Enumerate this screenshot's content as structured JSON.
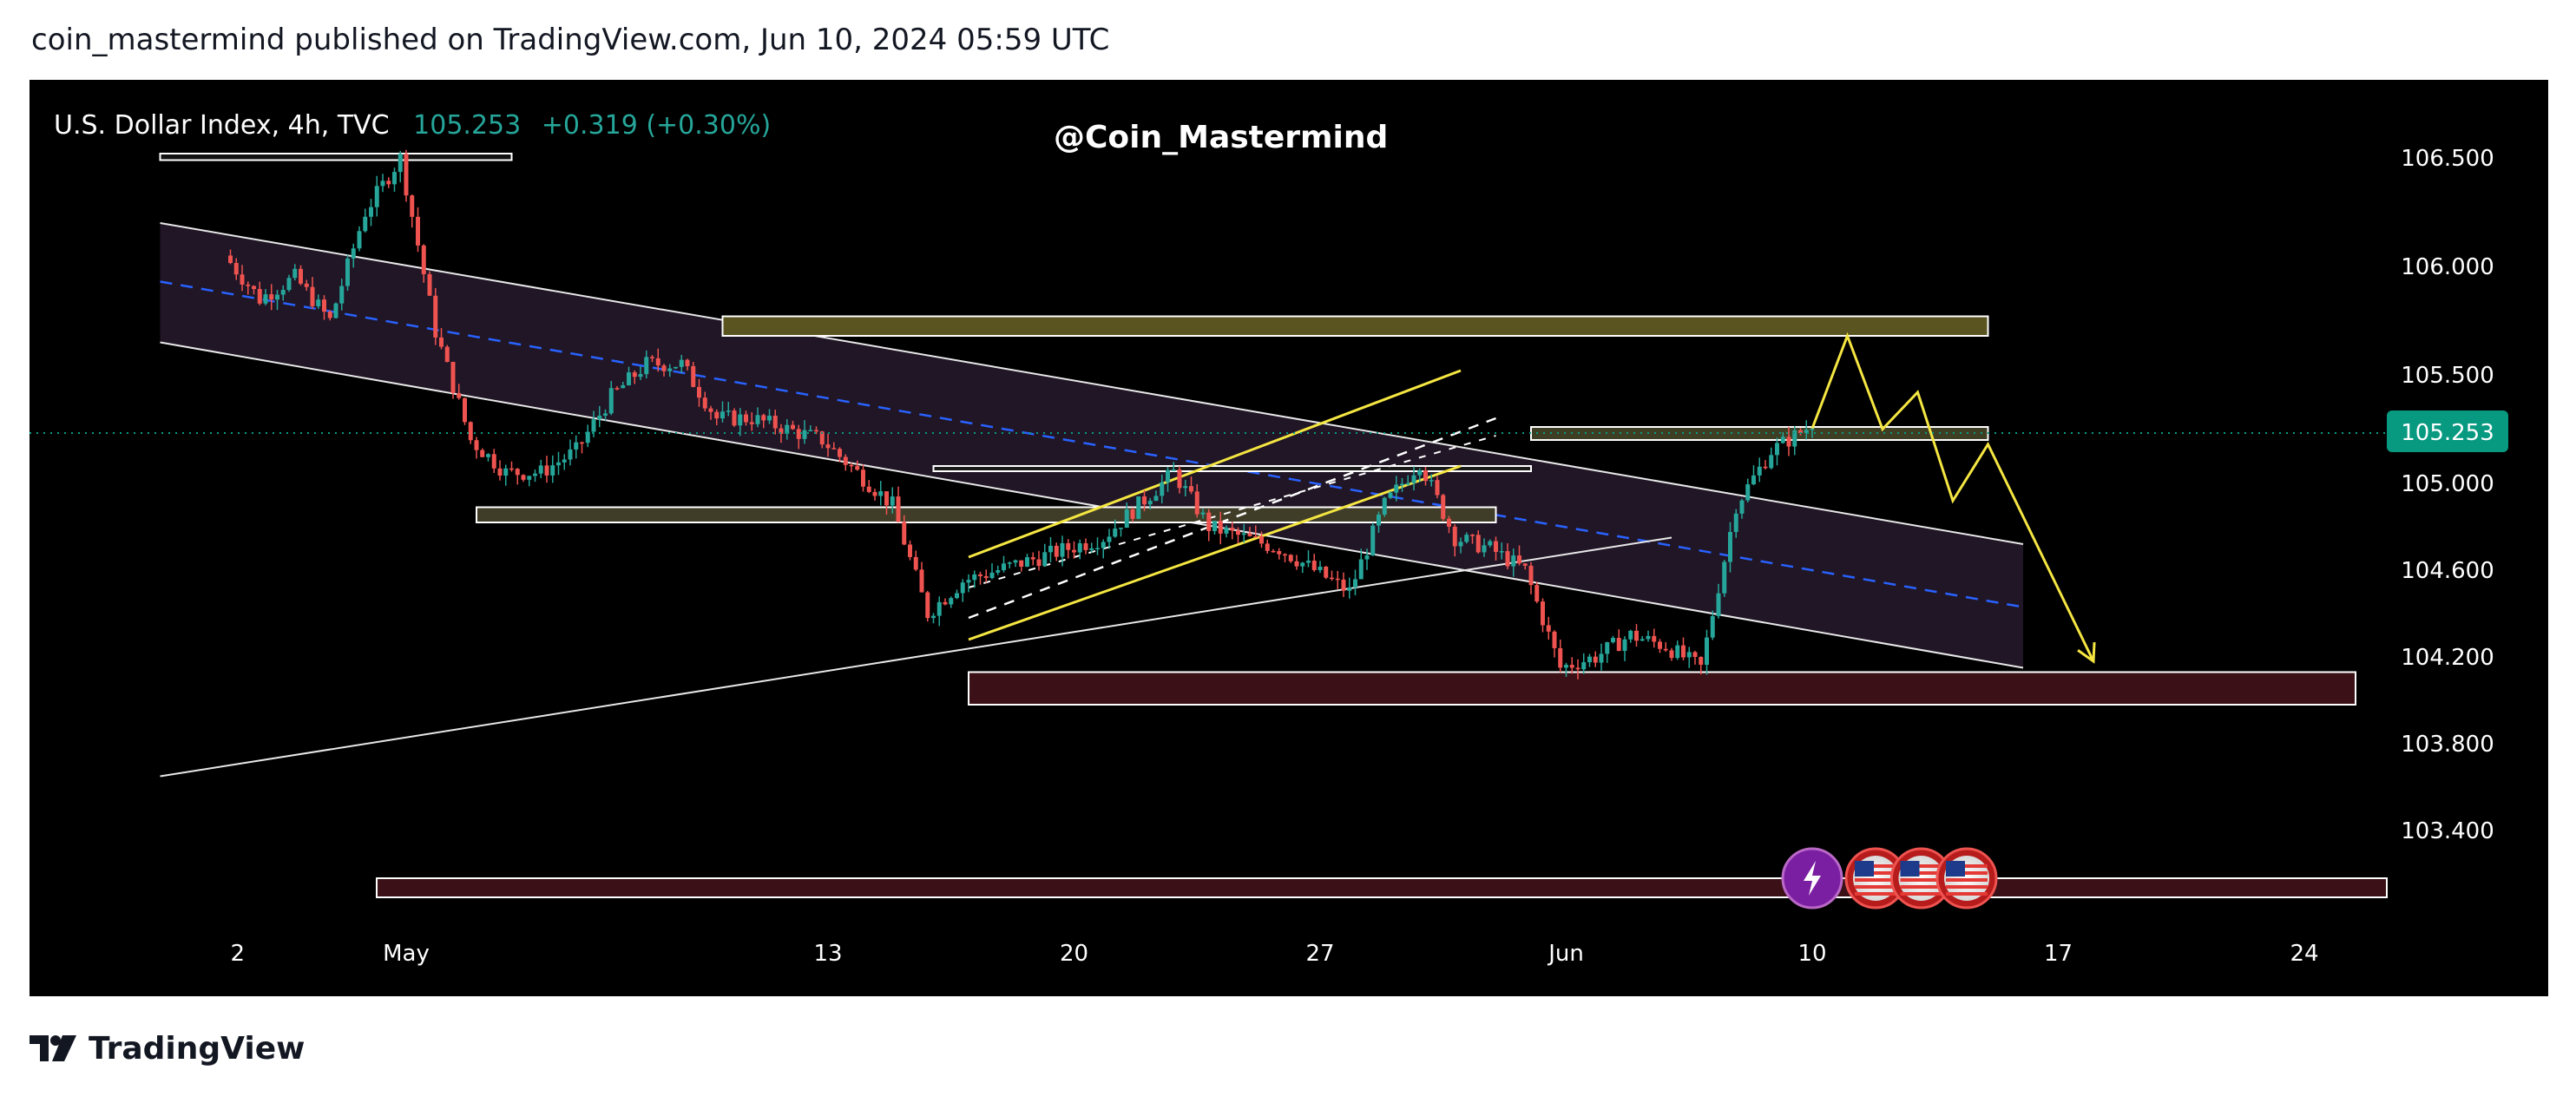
{
  "header": {
    "publish_text": "coin_mastermind published on TradingView.com, Jun 10, 2024 05:59 UTC"
  },
  "legend": {
    "symbol": "U.S. Dollar Index, 4h, TVC",
    "last": "105.253",
    "change": "+0.319 (+0.30%)"
  },
  "watermark": "@Coin_Mastermind",
  "footer": {
    "brand": "TradingView"
  },
  "colors": {
    "up": "#26a69a",
    "down": "#ef5350",
    "price_tag": "#089981",
    "projection": "#f5e642"
  },
  "chart_data": {
    "type": "candlestick",
    "symbol": "U.S. Dollar Index",
    "timeframe": "4h",
    "source": "TVC",
    "last_price": 105.253,
    "change": 0.319,
    "change_pct": 0.3,
    "y_axis": {
      "ticks": [
        "106.500",
        "106.000",
        "105.500",
        "105.000",
        "104.600",
        "104.200",
        "103.800",
        "103.400"
      ],
      "range": [
        103.0,
        106.85
      ]
    },
    "x_axis": {
      "ticks": [
        "2",
        "May",
        "13",
        "20",
        "27",
        "Jun",
        "10",
        "17",
        "24"
      ]
    },
    "price_path": [
      [
        "2024-04-26",
        106.05
      ],
      [
        "2024-04-27",
        105.85
      ],
      [
        "2024-04-28",
        105.95
      ],
      [
        "2024-04-29",
        105.75
      ],
      [
        "2024-04-30",
        106.25
      ],
      [
        "2024-05-01",
        106.5
      ],
      [
        "2024-05-02",
        105.7
      ],
      [
        "2024-05-03",
        105.2
      ],
      [
        "2024-05-04",
        105.05
      ],
      [
        "2024-05-05",
        105.05
      ],
      [
        "2024-05-06",
        105.15
      ],
      [
        "2024-05-07",
        105.4
      ],
      [
        "2024-05-08",
        105.55
      ],
      [
        "2024-05-09",
        105.55
      ],
      [
        "2024-05-10",
        105.3
      ],
      [
        "2024-05-11",
        105.3
      ],
      [
        "2024-05-12",
        105.25
      ],
      [
        "2024-05-13",
        105.2
      ],
      [
        "2024-05-14",
        105.05
      ],
      [
        "2024-05-15",
        104.9
      ],
      [
        "2024-05-16",
        104.4
      ],
      [
        "2024-05-17",
        104.55
      ],
      [
        "2024-05-18",
        104.6
      ],
      [
        "2024-05-19",
        104.65
      ],
      [
        "2024-05-20",
        104.7
      ],
      [
        "2024-05-21",
        104.75
      ],
      [
        "2024-05-22",
        104.9
      ],
      [
        "2024-05-23",
        105.05
      ],
      [
        "2024-05-24",
        104.8
      ],
      [
        "2024-05-25",
        104.75
      ],
      [
        "2024-05-26",
        104.7
      ],
      [
        "2024-05-27",
        104.6
      ],
      [
        "2024-05-28",
        104.5
      ],
      [
        "2024-05-29",
        104.9
      ],
      [
        "2024-05-30",
        105.1
      ],
      [
        "2024-05-31",
        104.75
      ],
      [
        "2024-06-01",
        104.7
      ],
      [
        "2024-06-02",
        104.6
      ],
      [
        "2024-06-03",
        104.15
      ],
      [
        "2024-06-04",
        104.2
      ],
      [
        "2024-06-05",
        104.3
      ],
      [
        "2024-06-06",
        104.25
      ],
      [
        "2024-06-07",
        104.15
      ],
      [
        "2024-06-08",
        104.9
      ],
      [
        "2024-06-09",
        105.15
      ],
      [
        "2024-06-10",
        105.253
      ]
    ],
    "projection_path": [
      [
        "2024-06-10",
        105.253
      ],
      [
        "2024-06-11",
        105.68
      ],
      [
        "2024-06-12",
        105.25
      ],
      [
        "2024-06-13",
        105.42
      ],
      [
        "2024-06-14",
        104.92
      ],
      [
        "2024-06-15",
        105.18
      ],
      [
        "2024-06-18",
        104.18
      ]
    ],
    "zones": [
      {
        "from": "2024-05-10",
        "to": "2024-06-15",
        "low": 105.68,
        "high": 105.77,
        "fill": "#5a5420"
      },
      {
        "from": "2024-06-02",
        "to": "2024-06-15",
        "low": 105.2,
        "high": 105.26,
        "fill": "#3e3e24"
      },
      {
        "from": "2024-05-03",
        "to": "2024-06-01",
        "low": 104.82,
        "high": 104.89,
        "fill": "#3f3d28"
      },
      {
        "from": "2024-05-16",
        "to": "2024-06-02",
        "low": 105.06,
        "high": 105.08,
        "fill": "#1a1a1a"
      },
      {
        "from": "2024-05-17",
        "to": "2024-06-26",
        "low": 103.98,
        "high": 104.13,
        "fill": "#3b1117"
      },
      {
        "from": "2024-04-24",
        "to": "2024-05-04",
        "low": 106.49,
        "high": 106.52,
        "fill": "#111111"
      }
    ],
    "channel": {
      "upper": [
        [
          "2024-04-24",
          106.2
        ],
        [
          "2024-06-16",
          104.72
        ]
      ],
      "lower": [
        [
          "2024-04-24",
          105.65
        ],
        [
          "2024-06-16",
          104.15
        ]
      ],
      "midline": [
        [
          "2024-04-24",
          105.93
        ],
        [
          "2024-06-16",
          104.43
        ]
      ]
    },
    "trendlines": {
      "rising_support": [
        [
          "2024-04-24",
          103.65
        ],
        [
          "2024-06-06",
          104.75
        ]
      ],
      "wedge_upper": [
        [
          "2024-05-17",
          104.66
        ],
        [
          "2024-05-31",
          105.52
        ]
      ],
      "wedge_lower": [
        [
          "2024-05-17",
          104.28
        ],
        [
          "2024-05-31",
          105.08
        ]
      ],
      "dashed_lower": [
        [
          "2024-05-17",
          104.38
        ],
        [
          "2024-06-01",
          105.3
        ]
      ],
      "dashed_upper": [
        [
          "2024-05-17",
          104.52
        ],
        [
          "2024-06-01",
          105.22
        ]
      ]
    },
    "event_markers": [
      {
        "date": "2024-06-10",
        "icon": "lightning-icon"
      },
      {
        "date": "2024-06-12",
        "icon": "us-flag-icon"
      },
      {
        "date": "2024-06-13",
        "icon": "us-flag-icon"
      },
      {
        "date": "2024-06-14",
        "icon": "us-flag-icon"
      }
    ]
  }
}
